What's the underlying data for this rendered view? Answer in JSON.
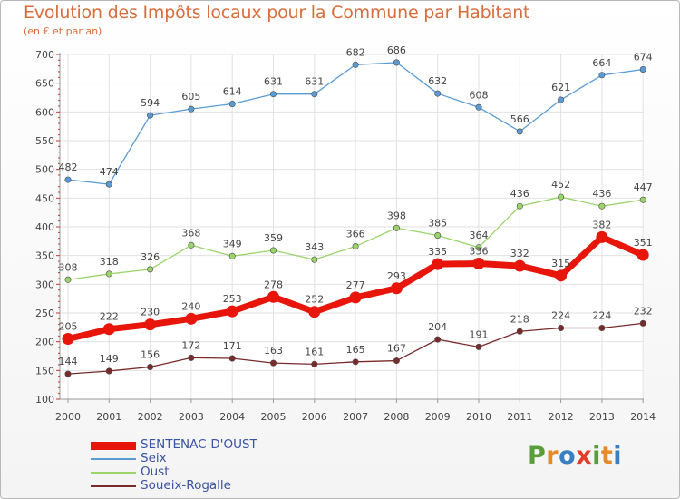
{
  "title": "Evolution des Impôts locaux pour la Commune par Habitant",
  "subtitle": "(en € et par an)",
  "logo": {
    "letters": [
      "P",
      "r",
      "o",
      "x",
      "i",
      "t",
      "i"
    ],
    "colors": [
      "#5a9e3c",
      "#e58a2a",
      "#3a7fc1",
      "#e0402a",
      "#5a9e3c",
      "#e58a2a",
      "#3a7fc1"
    ]
  },
  "chart_data": {
    "type": "line",
    "title": "Evolution des Impôts locaux pour la Commune par Habitant",
    "ylabel": "(en € et par an)",
    "xlabel": "",
    "ylim": [
      100,
      700
    ],
    "yticks": [
      100,
      150,
      200,
      250,
      300,
      350,
      400,
      450,
      500,
      550,
      600,
      650,
      700
    ],
    "grid": true,
    "legend": "bottom-left",
    "x": [
      "2000",
      "2001",
      "2002",
      "2003",
      "2004",
      "2005",
      "2006",
      "2007",
      "2008",
      "2009",
      "2010",
      "2011",
      "2012",
      "2013",
      "2014"
    ],
    "series": [
      {
        "name": "SENTENAC-D'OUST",
        "color": "#e8150b",
        "emphasis": true,
        "values": [
          205,
          222,
          230,
          240,
          253,
          278,
          252,
          277,
          293,
          335,
          336,
          332,
          315,
          382,
          351
        ]
      },
      {
        "name": "Seix",
        "color": "#5b9bd5",
        "emphasis": false,
        "values": [
          482,
          474,
          594,
          605,
          614,
          631,
          631,
          682,
          686,
          632,
          608,
          566,
          621,
          664,
          674
        ]
      },
      {
        "name": "Oust",
        "color": "#9ad46a",
        "emphasis": false,
        "values": [
          308,
          318,
          326,
          368,
          349,
          359,
          343,
          366,
          398,
          385,
          364,
          436,
          452,
          436,
          447
        ]
      },
      {
        "name": "Soueix-Rogalle",
        "color": "#7a2a2a",
        "emphasis": false,
        "values": [
          144,
          149,
          156,
          172,
          171,
          163,
          161,
          165,
          167,
          204,
          191,
          218,
          224,
          224,
          232
        ]
      }
    ]
  }
}
